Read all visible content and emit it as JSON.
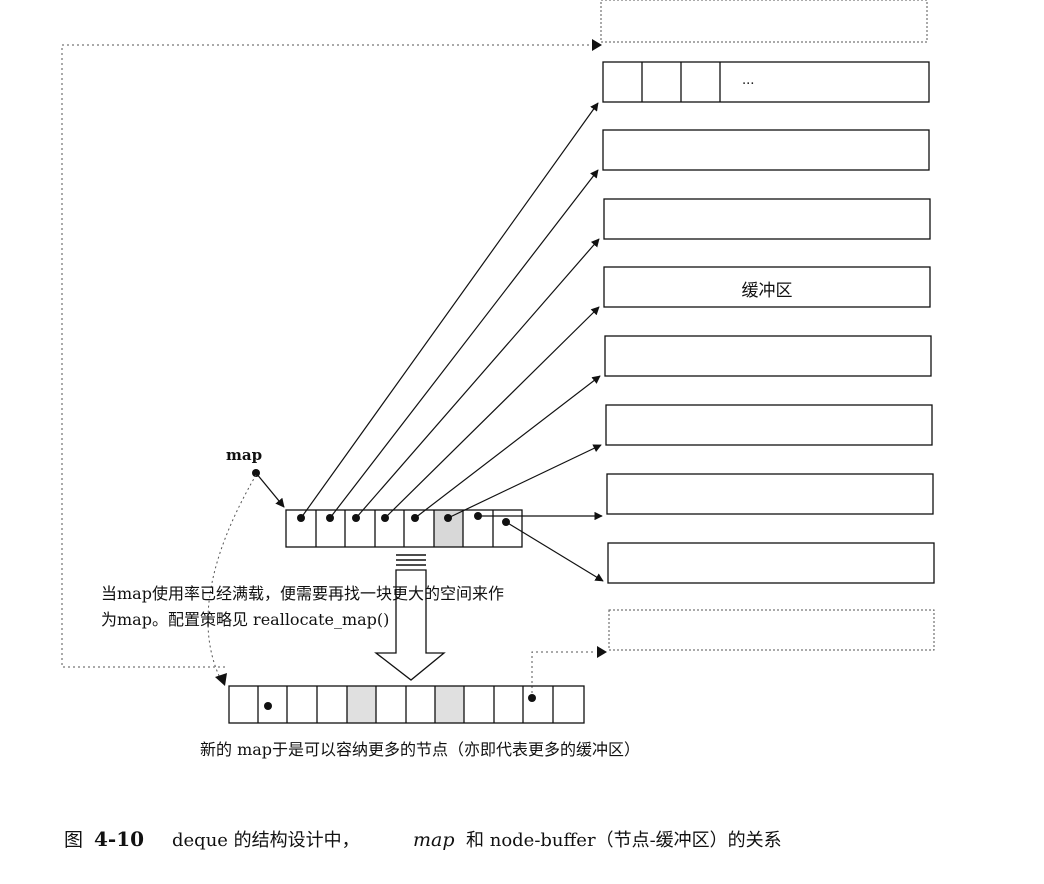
{
  "labels": {
    "map_label": "map",
    "buffer_label": "缓冲区",
    "ellipsis": "...",
    "note_line1": "当map使用率已经满载，便需要再找一块更大的空间来作",
    "note_line2": "为map。配置策略见 reallocate_map()",
    "new_map_caption": "新的 map于是可以容纳更多的节点（亦即代表更多的缓冲区）",
    "caption_prefix": "图",
    "caption_number": "4-10",
    "caption_text_1": "deque 的结构设计中，",
    "caption_map": "map",
    "caption_text_2": "和  node-buffer（节点-缓冲区）的关系"
  },
  "colors": {
    "ink": "#111111",
    "dotted": "#555555",
    "shaded_cell": "#d8d8d8"
  }
}
